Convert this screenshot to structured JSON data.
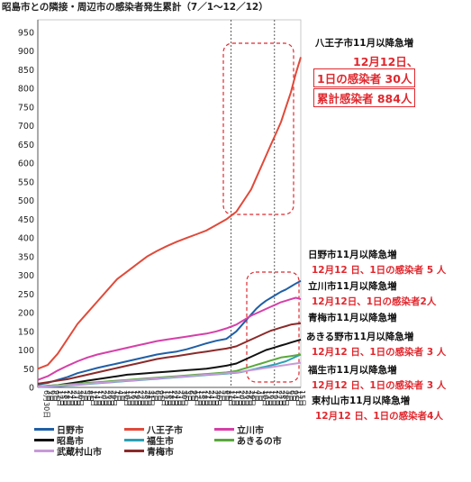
{
  "chart_data": {
    "type": "line",
    "title": "昭島市との隣接・周辺市の感染者発生累計（7／1～12／12）",
    "xlabel": "",
    "ylabel": "",
    "ylim": [
      0,
      950
    ],
    "yticks": [
      0,
      50,
      100,
      150,
      200,
      250,
      300,
      350,
      400,
      450,
      500,
      550,
      600,
      650,
      700,
      750,
      800,
      850,
      900,
      950
    ],
    "grid": false,
    "legend_position": "bottom-left",
    "x_tick_labels": [
      "6月30日",
      "3日",
      "6日",
      "9日",
      "12日",
      "15日",
      "18日",
      "21日",
      "24日",
      "27日",
      "30日",
      "2日",
      "5日",
      "8日",
      "11日",
      "14日",
      "17日",
      "20日",
      "23日",
      "26日",
      "29日",
      "1日",
      "4日",
      "7日",
      "10日",
      "13日",
      "16日",
      "19日",
      "22日",
      "25日",
      "28日",
      "31日",
      "3日",
      "6日",
      "9日",
      "12日",
      "15日",
      "18日",
      "21日",
      "24日",
      "27日",
      "30日",
      "3日",
      "6日",
      "9日",
      "12日",
      "15日",
      "18日",
      "21日",
      "24日",
      "27日",
      "30日",
      "2日",
      "5日",
      "8日",
      "11日",
      "14日",
      "17日",
      "20日",
      "23日",
      "26日",
      "29日",
      "1日",
      "4日",
      "7日",
      "10日",
      "13日",
      "16日",
      "19日",
      "22日",
      "25日",
      "28日",
      "3日",
      "6日",
      "9日",
      "12日",
      "15日"
    ],
    "x": [
      0,
      10,
      20,
      30,
      40,
      50,
      60,
      70,
      80,
      90,
      100,
      110,
      120,
      130,
      140,
      150,
      160,
      170,
      180,
      190,
      200,
      205,
      210,
      215,
      220,
      225,
      230,
      235,
      240,
      245,
      250,
      255,
      260,
      265
    ],
    "series": [
      {
        "name": "日野市",
        "color": "#1f5fa6",
        "values": [
          8,
          12,
          20,
          28,
          38,
          45,
          52,
          58,
          64,
          70,
          76,
          82,
          88,
          92,
          96,
          102,
          110,
          118,
          125,
          130,
          150,
          165,
          180,
          195,
          210,
          222,
          232,
          240,
          248,
          256,
          262,
          270,
          278,
          285
        ]
      },
      {
        "name": "八王子市",
        "color": "#e04a3a",
        "values": [
          50,
          60,
          90,
          130,
          170,
          200,
          230,
          260,
          290,
          310,
          330,
          350,
          365,
          378,
          390,
          400,
          410,
          420,
          435,
          450,
          470,
          490,
          510,
          530,
          560,
          590,
          620,
          650,
          680,
          710,
          750,
          790,
          840,
          884
        ]
      },
      {
        "name": "立川市",
        "color": "#d63fa8",
        "values": [
          20,
          30,
          45,
          58,
          70,
          80,
          88,
          94,
          100,
          106,
          112,
          118,
          124,
          128,
          132,
          136,
          140,
          144,
          150,
          158,
          168,
          176,
          184,
          192,
          198,
          204,
          210,
          216,
          222,
          228,
          232,
          236,
          240,
          236
        ]
      },
      {
        "name": "昭島市",
        "color": "#111111",
        "values": [
          2,
          4,
          6,
          10,
          14,
          18,
          22,
          26,
          30,
          34,
          36,
          38,
          40,
          42,
          44,
          46,
          48,
          50,
          54,
          58,
          64,
          70,
          76,
          82,
          88,
          94,
          100,
          104,
          108,
          112,
          116,
          120,
          124,
          128
        ]
      },
      {
        "name": "福生市",
        "color": "#2aa0b4",
        "values": [
          1,
          2,
          3,
          5,
          7,
          9,
          11,
          13,
          15,
          17,
          19,
          21,
          23,
          25,
          27,
          29,
          31,
          33,
          35,
          37,
          39,
          41,
          44,
          47,
          50,
          53,
          56,
          59,
          62,
          66,
          70,
          76,
          82,
          88
        ]
      },
      {
        "name": "あきるの市",
        "color": "#5aa83c",
        "values": [
          3,
          4,
          6,
          8,
          10,
          12,
          14,
          16,
          18,
          20,
          22,
          24,
          26,
          28,
          30,
          32,
          34,
          36,
          38,
          40,
          44,
          48,
          52,
          56,
          60,
          64,
          68,
          72,
          76,
          80,
          82,
          84,
          86,
          88
        ]
      },
      {
        "name": "武蔵村山市",
        "color": "#c79ad8",
        "values": [
          2,
          3,
          4,
          6,
          8,
          10,
          12,
          14,
          16,
          18,
          20,
          22,
          24,
          26,
          28,
          30,
          32,
          34,
          36,
          38,
          40,
          42,
          44,
          46,
          48,
          50,
          52,
          54,
          56,
          58,
          60,
          62,
          64,
          66
        ]
      },
      {
        "name": "青梅市",
        "color": "#8b2a2a",
        "values": [
          10,
          14,
          18,
          22,
          28,
          34,
          40,
          46,
          52,
          58,
          64,
          70,
          76,
          80,
          84,
          88,
          92,
          96,
          100,
          104,
          110,
          116,
          122,
          128,
          134,
          140,
          146,
          152,
          156,
          160,
          164,
          168,
          170,
          172
        ]
      }
    ]
  },
  "annotations": {
    "hachioji_head": "八王子市11月以降急増",
    "hachioji_date": "12月12日、",
    "hachioji_daily": "1日の感染者 30人",
    "hachioji_total": "累計感染者 884人",
    "hino_head": "日野市11月以降急増",
    "hino_detail": "12月12 日、1日の感染者 5 人",
    "tachikawa_head": "立川市11月以降急増",
    "tachikawa_detail": "12月12日、1日の感染者2人",
    "ome_head": "青梅市11月以降急増",
    "akiruno_head": "あきる野市11月以降急増",
    "akiruno_detail": "12月12 日、1日の感染者 3 人",
    "fussa_head": "福生市11月以降急増",
    "fussa_detail": "12月12 日、1日の感染者 3 人",
    "higashimurayama_head": "東村山市11月以降急増",
    "higashimurayama_detail": "12月12 日、1日の感染者4人"
  }
}
